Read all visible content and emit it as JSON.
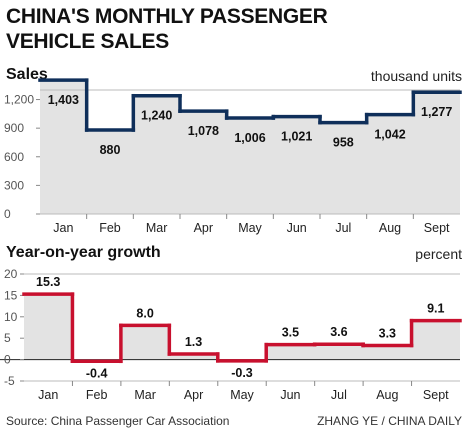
{
  "title_lines": [
    "CHINA'S MONTHLY PASSENGER",
    "VEHICLE SALES"
  ],
  "source": "Source: China Passenger Car Association",
  "credit": "ZHANG YE / CHINA DAILY",
  "colors": {
    "sales_line": "#0f2f5a",
    "growth_line": "#c8102e",
    "fill": "#e3e3e3",
    "zero_line": "#222222"
  },
  "chart_data": [
    {
      "type": "area",
      "step": true,
      "title": "Sales",
      "ylabel": "thousand units",
      "xlabel": "",
      "categories": [
        "Jan",
        "Feb",
        "Mar",
        "Apr",
        "May",
        "Jun",
        "Jul",
        "Aug",
        "Sept"
      ],
      "values": [
        1403,
        880,
        1240,
        1078,
        1006,
        1021,
        958,
        1042,
        1277
      ],
      "data_labels": [
        "1,403",
        "880",
        "1,240",
        "1,078",
        "1,006",
        "1,021",
        "958",
        "1,042",
        "1,277"
      ],
      "yticks": [
        0,
        300,
        600,
        900,
        1200
      ],
      "ytick_labels": [
        "0",
        "300",
        "600",
        "900",
        "1,200"
      ],
      "ylim": [
        0,
        1300
      ],
      "grid": false
    },
    {
      "type": "area",
      "step": true,
      "title": "Year-on-year growth",
      "ylabel": "percent",
      "xlabel": "",
      "categories": [
        "Jan",
        "Feb",
        "Mar",
        "Apr",
        "May",
        "Jun",
        "Jul",
        "Aug",
        "Sept"
      ],
      "values": [
        15.3,
        -0.4,
        8.0,
        1.3,
        -0.3,
        3.5,
        3.6,
        3.3,
        9.1
      ],
      "data_labels": [
        "15.3",
        "-0.4",
        "8.0",
        "1.3",
        "-0.3",
        "3.5",
        "3.6",
        "3.3",
        "9.1"
      ],
      "yticks": [
        -5,
        0,
        5,
        10,
        15,
        20
      ],
      "ytick_labels": [
        "-5",
        "0",
        "5",
        "10",
        "15",
        "20"
      ],
      "ylim": [
        -5,
        20
      ],
      "grid": false
    }
  ]
}
